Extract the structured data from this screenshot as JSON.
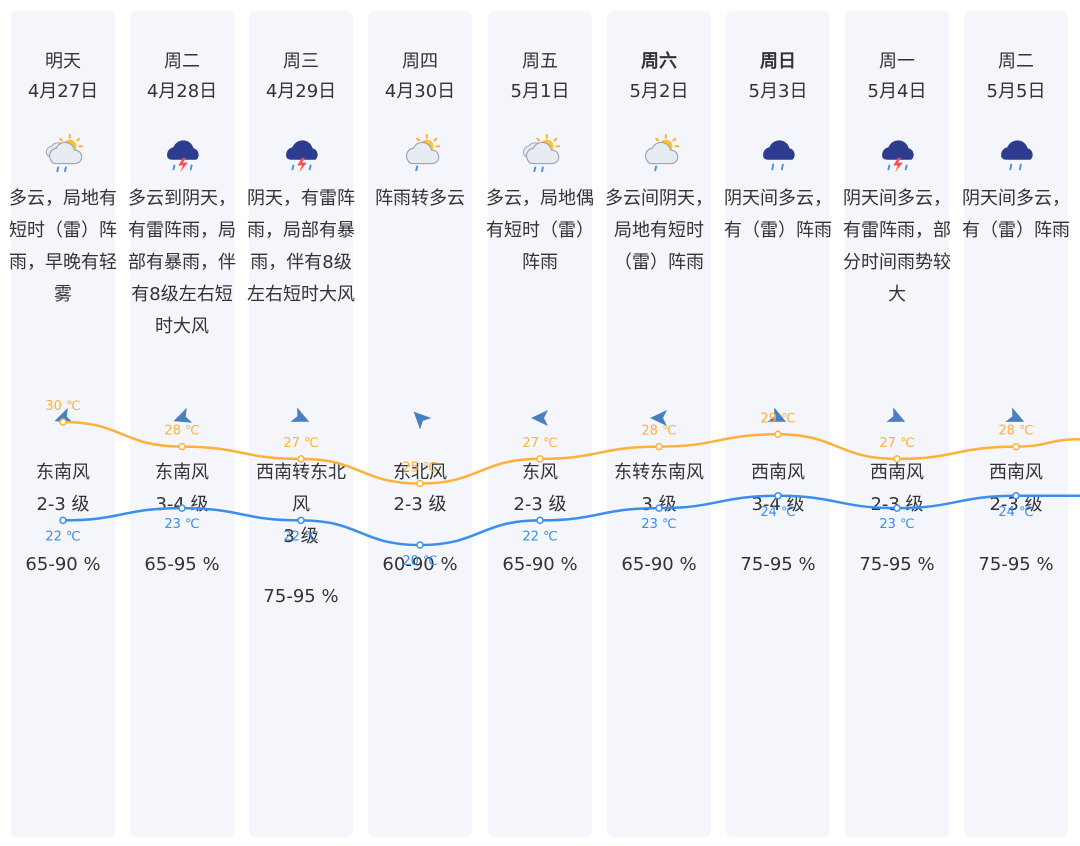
{
  "forecast": [
    {
      "day": "明天",
      "date": "4月27日",
      "bold": false,
      "icon": "partly-cloudy-rain-icon",
      "desc": "多云，局地有短时（雷）阵雨，早晚有轻雾",
      "wind_dir": "东南风",
      "wind_level": "2-3 级",
      "humidity": "65-90 %",
      "high": 30,
      "high_label": "30 ℃",
      "low": 22,
      "low_label": "22 ℃",
      "wind_angle": 160
    },
    {
      "day": "周二",
      "date": "4月28日",
      "bold": false,
      "icon": "thunderstorm-icon",
      "desc": "多云到阴天，有雷阵雨，局部有暴雨，伴有8级左右短时大风",
      "wind_dir": "东南风",
      "wind_level": "3-4 级",
      "humidity": "65-95 %",
      "high": 28,
      "high_label": "28 ℃",
      "low": 23,
      "low_label": "23 ℃",
      "wind_angle": 160
    },
    {
      "day": "周三",
      "date": "4月29日",
      "bold": false,
      "icon": "thunderstorm-icon",
      "desc": "阴天，有雷阵雨，局部有暴雨，伴有8级左右短时大风",
      "wind_dir": "西南转东北风",
      "wind_level": "3 级",
      "humidity": "75-95 %",
      "high": 27,
      "high_label": "27 ℃",
      "low": 22,
      "low_label": "22 ℃",
      "wind_angle": 25
    },
    {
      "day": "周四",
      "date": "4月30日",
      "bold": false,
      "icon": "cloudy-sun-rain-icon",
      "desc": "阵雨转多云",
      "wind_dir": "东北风",
      "wind_level": "2-3 级",
      "humidity": "60-90 %",
      "high": 25,
      "high_label": "25 ℃",
      "low": 20,
      "low_label": "20 ℃",
      "wind_angle": 225
    },
    {
      "day": "周五",
      "date": "5月1日",
      "bold": false,
      "icon": "partly-cloudy-rain-icon",
      "desc": "多云，局地偶有短时（雷）阵雨",
      "wind_dir": "东风",
      "wind_level": "2-3 级",
      "humidity": "65-90 %",
      "high": 27,
      "high_label": "27 ℃",
      "low": 22,
      "low_label": "22 ℃",
      "wind_angle": 180
    },
    {
      "day": "周六",
      "date": "5月2日",
      "bold": true,
      "icon": "cloudy-sun-rain-icon",
      "desc": "多云间阴天，局地有短时（雷）阵雨",
      "wind_dir": "东转东南风",
      "wind_level": "3 级",
      "humidity": "65-90 %",
      "high": 28,
      "high_label": "28 ℃",
      "low": 23,
      "low_label": "23 ℃",
      "wind_angle": 180
    },
    {
      "day": "周日",
      "date": "5月3日",
      "bold": true,
      "icon": "rain-cloud-icon",
      "desc": "阴天间多云，有（雷）阵雨",
      "wind_dir": "西南风",
      "wind_level": "3-4 级",
      "humidity": "75-95 %",
      "high": 29,
      "high_label": "29 ℃",
      "low": 24,
      "low_label": "24 ℃",
      "wind_angle": 25
    },
    {
      "day": "周一",
      "date": "5月4日",
      "bold": false,
      "icon": "thunderstorm-icon",
      "desc": "阴天间多云，有雷阵雨，部分时间雨势较大",
      "wind_dir": "西南风",
      "wind_level": "2-3 级",
      "humidity": "75-95 %",
      "high": 27,
      "high_label": "27 ℃",
      "low": 23,
      "low_label": "23 ℃",
      "wind_angle": 25
    },
    {
      "day": "周二",
      "date": "5月5日",
      "bold": false,
      "icon": "rain-cloud-icon",
      "desc": "阴天间多云，有（雷）阵雨",
      "wind_dir": "西南风",
      "wind_level": "2-3 级",
      "humidity": "75-95 %",
      "high": 28,
      "high_label": "28 ℃",
      "low": 24,
      "low_label": "24 ℃",
      "wind_angle": 25
    }
  ],
  "colors": {
    "high_line": "#ffb03a",
    "low_line": "#3a8ef0",
    "panel_bg": "#f4f6fb",
    "wind_icon": "#4a7fc0"
  },
  "chart_data": {
    "type": "line",
    "categories": [
      "4月27日",
      "4月28日",
      "4月29日",
      "4月30日",
      "5月1日",
      "5月2日",
      "5月3日",
      "5月4日",
      "5月5日"
    ],
    "series": [
      {
        "values": [
          30,
          28,
          27,
          25,
          27,
          28,
          29,
          27,
          28
        ]
      },
      {
        "values": [
          22,
          23,
          22,
          20,
          22,
          23,
          24,
          23,
          24
        ]
      }
    ]
  }
}
